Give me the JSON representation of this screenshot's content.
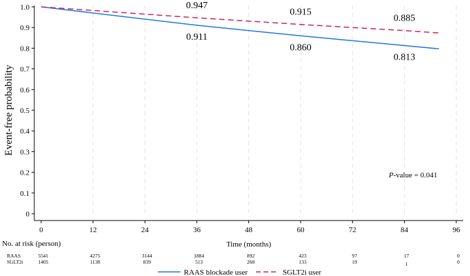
{
  "chart_data": {
    "type": "line",
    "title": "",
    "xlabel": "Time (months)",
    "ylabel": "Event-free probability",
    "xlim": [
      0,
      96
    ],
    "ylim": [
      0,
      1.0
    ],
    "x_ticks": [
      0,
      12,
      24,
      36,
      48,
      60,
      72,
      84,
      96
    ],
    "y_ticks": [
      0,
      0.1,
      0.2,
      0.3,
      0.4,
      0.5,
      0.6,
      0.7,
      0.8,
      0.9,
      1.0
    ],
    "y_tick_labels": [
      "0",
      "0.1",
      "0.2",
      "0.3",
      "0.4",
      "0.5",
      "0.6",
      "0.7",
      "0.8",
      "0.9",
      "1.0"
    ],
    "grid": "vertical-dashed",
    "series": [
      {
        "name": "RAAS blockade user",
        "color": "#1f77e0",
        "dash": "solid",
        "x": [
          0,
          36,
          60,
          84,
          92
        ],
        "y": [
          1.0,
          0.911,
          0.86,
          0.813,
          0.797
        ]
      },
      {
        "name": "SGLT2i user",
        "color": "#c8245a",
        "dash": "dashed",
        "x": [
          0,
          36,
          60,
          84,
          92
        ],
        "y": [
          1.0,
          0.947,
          0.915,
          0.885,
          0.874
        ]
      }
    ],
    "annotations": [
      {
        "text": "0.947",
        "x": 36,
        "y": 0.947,
        "series": "SGLT2i user",
        "placement": "above"
      },
      {
        "text": "0.915",
        "x": 60,
        "y": 0.915,
        "series": "SGLT2i user",
        "placement": "above"
      },
      {
        "text": "0.885",
        "x": 84,
        "y": 0.885,
        "series": "SGLT2i user",
        "placement": "above"
      },
      {
        "text": "0.911",
        "x": 36,
        "y": 0.911,
        "series": "RAAS blockade user",
        "placement": "below"
      },
      {
        "text": "0.860",
        "x": 60,
        "y": 0.86,
        "series": "RAAS blockade user",
        "placement": "below"
      },
      {
        "text": "0.813",
        "x": 84,
        "y": 0.813,
        "series": "RAAS blockade user",
        "placement": "below"
      }
    ],
    "p_value": {
      "label": "P",
      "text": "-value = 0.041"
    },
    "risk_table": {
      "header": "No. at risk (person)",
      "times": [
        0,
        12,
        24,
        36,
        48,
        60,
        72,
        84,
        96
      ],
      "rows": [
        {
          "label": "RAAS",
          "values": [
            "5541",
            "4275",
            "3144",
            "1884",
            "892",
            "423",
            "97",
            "17",
            "0"
          ]
        },
        {
          "label": "SGLT2i",
          "values": [
            "1405",
            "1138",
            "839",
            "513",
            "268",
            "133",
            "19",
            "1",
            "0"
          ]
        }
      ]
    },
    "legend": {
      "placement": "bottom-center",
      "entries": [
        {
          "label": "RAAS blockade user",
          "series": "RAAS blockade user"
        },
        {
          "label": "SGLT2i user",
          "series": "SGLT2i user"
        }
      ]
    }
  }
}
